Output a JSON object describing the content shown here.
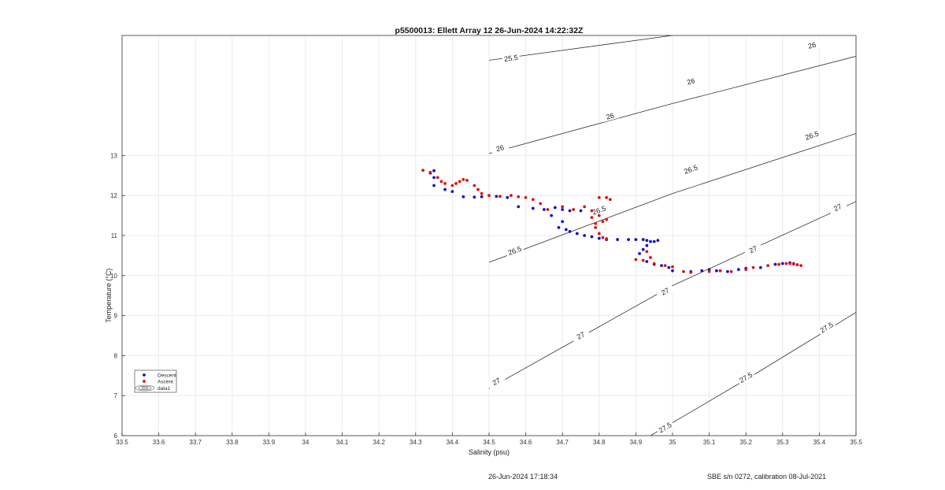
{
  "chart_data": {
    "type": "scatter",
    "title": "p5500013: Ellett Array 12 26-Jun-2024 14:22:32Z",
    "xlabel": "Salinity (psu)",
    "ylabel": "Temperature (°C)",
    "xlim": [
      33.5,
      35.5
    ],
    "ylim": [
      6,
      16
    ],
    "x_ticks": [
      "33.5",
      "33.6",
      "33.7",
      "33.8",
      "33.9",
      "34",
      "34.1",
      "34.2",
      "34.3",
      "34.4",
      "34.5",
      "34.6",
      "34.7",
      "34.8",
      "34.9",
      "35",
      "35.1",
      "35.2",
      "35.3",
      "35.4",
      "35.5"
    ],
    "y_ticks": [
      "6",
      "7",
      "8",
      "9",
      "10",
      "11",
      "12",
      "13"
    ],
    "grid": true,
    "legend_position": "bottom-left",
    "legend": [
      "Descent",
      "Ascent",
      "data1"
    ],
    "colors": {
      "descent": "#1414c8",
      "ascent": "#dc1414",
      "contour": "#333333",
      "grid": "#e6e6e6"
    },
    "contours": [
      {
        "label": "25.5",
        "points": [
          [
            34.5,
            15.38
          ],
          [
            35.0,
            16.0
          ]
        ],
        "label_positions": [
          [
            34.56,
            15.43
          ]
        ]
      },
      {
        "label": "26",
        "points": [
          [
            34.5,
            13.05
          ],
          [
            35.0,
            14.3
          ],
          [
            35.5,
            15.48
          ]
        ],
        "label_positions": [
          [
            34.53,
            13.18
          ],
          [
            34.83,
            13.98
          ],
          [
            35.05,
            14.85
          ],
          [
            35.38,
            15.75
          ]
        ]
      },
      {
        "label": "26.5",
        "points": [
          [
            34.5,
            10.33
          ],
          [
            35.0,
            12.05
          ],
          [
            35.5,
            13.55
          ]
        ],
        "label_positions": [
          [
            34.57,
            10.62
          ],
          [
            34.8,
            11.63
          ],
          [
            35.05,
            12.65
          ],
          [
            35.38,
            13.5
          ]
        ]
      },
      {
        "label": "27",
        "points": [
          [
            34.5,
            7.18
          ],
          [
            35.0,
            9.75
          ],
          [
            35.5,
            11.85
          ]
        ],
        "label_positions": [
          [
            34.52,
            7.35
          ],
          [
            34.75,
            8.5
          ],
          [
            34.98,
            9.6
          ],
          [
            35.22,
            10.65
          ],
          [
            35.45,
            11.7
          ]
        ]
      },
      {
        "label": "27.5",
        "points": [
          [
            34.94,
            6.0
          ],
          [
            35.2,
            7.4
          ],
          [
            35.5,
            9.08
          ]
        ],
        "label_positions": [
          [
            34.98,
            6.2
          ],
          [
            35.2,
            7.45
          ],
          [
            35.42,
            8.7
          ]
        ]
      }
    ],
    "series": [
      {
        "name": "Descent",
        "points": [
          [
            34.35,
            12.62
          ],
          [
            34.34,
            12.56
          ],
          [
            34.35,
            12.45
          ],
          [
            34.35,
            12.25
          ],
          [
            34.38,
            12.15
          ],
          [
            34.4,
            12.1
          ],
          [
            34.43,
            11.97
          ],
          [
            34.46,
            11.96
          ],
          [
            34.48,
            11.97
          ],
          [
            34.52,
            11.98
          ],
          [
            34.55,
            11.95
          ],
          [
            34.58,
            11.72
          ],
          [
            34.62,
            11.68
          ],
          [
            34.65,
            11.65
          ],
          [
            34.68,
            11.7
          ],
          [
            34.7,
            11.65
          ],
          [
            34.72,
            11.62
          ],
          [
            34.75,
            11.62
          ],
          [
            34.67,
            11.5
          ],
          [
            34.7,
            11.35
          ],
          [
            34.69,
            11.2
          ],
          [
            34.71,
            11.15
          ],
          [
            34.72,
            11.1
          ],
          [
            34.74,
            11.05
          ],
          [
            34.76,
            11.0
          ],
          [
            34.78,
            10.97
          ],
          [
            34.8,
            10.93
          ],
          [
            34.82,
            10.9
          ],
          [
            34.85,
            10.9
          ],
          [
            34.88,
            10.9
          ],
          [
            34.9,
            10.9
          ],
          [
            34.92,
            10.9
          ],
          [
            34.93,
            10.88
          ],
          [
            34.94,
            10.85
          ],
          [
            34.95,
            10.85
          ],
          [
            34.96,
            10.88
          ],
          [
            34.93,
            10.75
          ],
          [
            34.92,
            10.65
          ],
          [
            34.91,
            10.55
          ],
          [
            34.93,
            10.35
          ],
          [
            34.95,
            10.28
          ],
          [
            34.97,
            10.25
          ],
          [
            34.99,
            10.2
          ],
          [
            35.0,
            10.12
          ],
          [
            35.05,
            10.1
          ],
          [
            35.08,
            10.12
          ],
          [
            35.1,
            10.15
          ],
          [
            35.12,
            10.12
          ],
          [
            35.15,
            10.1
          ],
          [
            35.18,
            10.15
          ],
          [
            35.2,
            10.18
          ],
          [
            35.24,
            10.2
          ],
          [
            35.28,
            10.28
          ],
          [
            35.3,
            10.3
          ],
          [
            35.32,
            10.32
          ],
          [
            35.33,
            10.3
          ]
        ]
      },
      {
        "name": "Ascent",
        "points": [
          [
            34.32,
            12.63
          ],
          [
            34.34,
            12.58
          ],
          [
            34.36,
            12.45
          ],
          [
            34.37,
            12.35
          ],
          [
            34.38,
            12.3
          ],
          [
            34.4,
            12.25
          ],
          [
            34.41,
            12.3
          ],
          [
            34.42,
            12.35
          ],
          [
            34.43,
            12.4
          ],
          [
            34.44,
            12.38
          ],
          [
            34.46,
            12.25
          ],
          [
            34.47,
            12.15
          ],
          [
            34.48,
            12.05
          ],
          [
            34.5,
            12.0
          ],
          [
            34.53,
            11.98
          ],
          [
            34.56,
            12.0
          ],
          [
            34.58,
            11.97
          ],
          [
            34.6,
            11.95
          ],
          [
            34.62,
            11.9
          ],
          [
            34.64,
            11.8
          ],
          [
            34.66,
            11.65
          ],
          [
            34.7,
            11.72
          ],
          [
            34.73,
            11.65
          ],
          [
            34.76,
            11.72
          ],
          [
            34.78,
            11.62
          ],
          [
            34.8,
            11.5
          ],
          [
            34.81,
            11.35
          ],
          [
            34.79,
            11.2
          ],
          [
            34.8,
            11.05
          ],
          [
            34.81,
            10.95
          ],
          [
            34.82,
            10.92
          ],
          [
            34.8,
            11.95
          ],
          [
            34.82,
            11.95
          ],
          [
            34.83,
            11.9
          ],
          [
            34.78,
            11.45
          ],
          [
            34.79,
            11.3
          ],
          [
            34.82,
            11.4
          ],
          [
            34.93,
            10.6
          ],
          [
            34.94,
            10.45
          ],
          [
            34.92,
            10.38
          ],
          [
            34.9,
            10.4
          ],
          [
            34.95,
            10.3
          ],
          [
            34.98,
            10.25
          ],
          [
            35.0,
            10.22
          ],
          [
            35.03,
            10.1
          ],
          [
            35.05,
            10.08
          ],
          [
            35.1,
            10.1
          ],
          [
            35.13,
            10.12
          ],
          [
            35.16,
            10.1
          ],
          [
            35.2,
            10.15
          ],
          [
            35.22,
            10.2
          ],
          [
            35.26,
            10.25
          ],
          [
            35.29,
            10.28
          ],
          [
            35.31,
            10.3
          ],
          [
            35.32,
            10.3
          ],
          [
            35.33,
            10.29
          ],
          [
            35.34,
            10.27
          ],
          [
            35.35,
            10.25
          ]
        ]
      }
    ]
  },
  "footer": {
    "timestamp": "26-Jun-2024 17:18:34",
    "calibration": "SBE s/n 0272, calibration 08-Jul-2021"
  }
}
